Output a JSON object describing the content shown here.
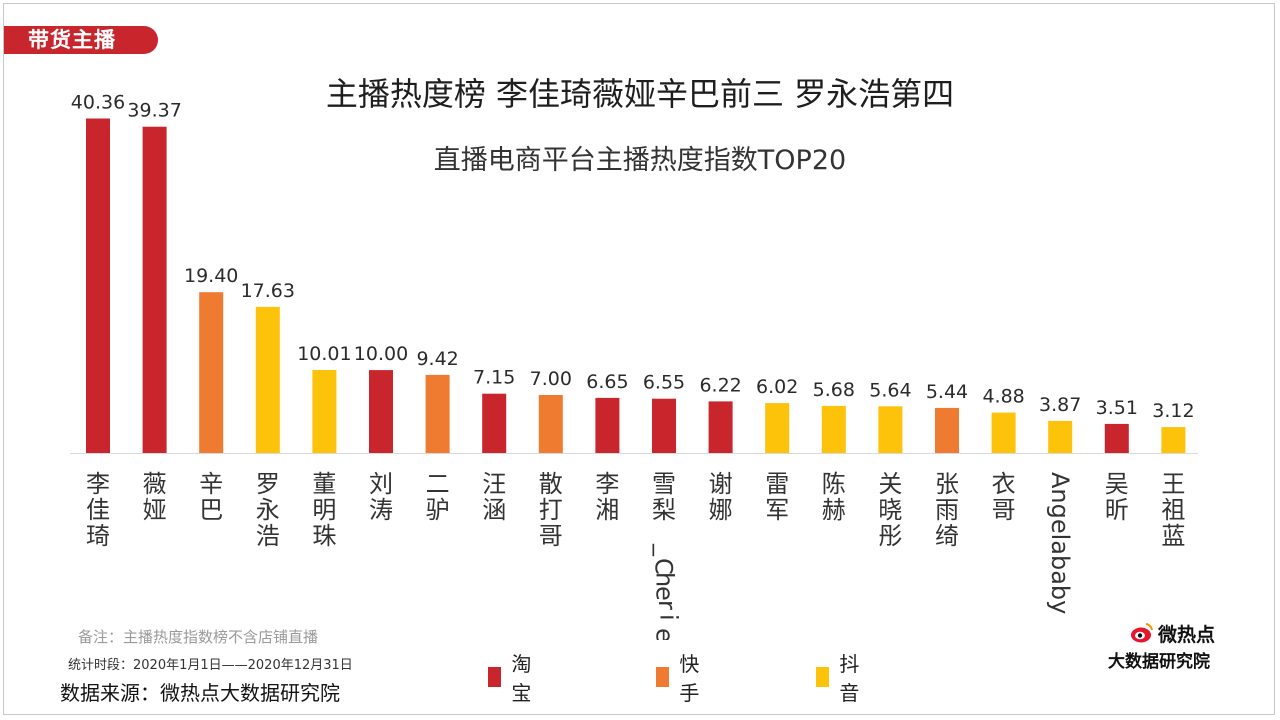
{
  "section_tag": "带货主播",
  "headline": "主播热度榜 李佳琦薇娅辛巴前三 罗永浩第四",
  "footer": {
    "note": "备注：主播热度指数榜不含店铺直播",
    "period": "统计时段：2020年1月1日——2020年12月31日",
    "source": "数据来源：微热点大数据研究院"
  },
  "logo": {
    "line1": "微热点",
    "line2": "大数据研究院",
    "icon": "weibo-eye-icon"
  },
  "colors": {
    "淘宝": "#c9252c",
    "快手": "#ee7b30",
    "抖音": "#fdc20a",
    "tag": "#c9252c"
  },
  "chart_data": {
    "type": "bar",
    "title": "直播电商平台主播热度指数TOP20",
    "xlabel": "",
    "ylabel": "",
    "ylim": [
      0,
      45
    ],
    "grid": false,
    "legend_position": "bottom",
    "legend": [
      {
        "name": "淘宝",
        "color": "#c9252c"
      },
      {
        "name": "快手",
        "color": "#ee7b30"
      },
      {
        "name": "抖音",
        "color": "#fdc20a"
      }
    ],
    "categories": [
      "李佳琦",
      "薇娅",
      "辛巴",
      "罗永浩",
      "董明珠",
      "刘涛",
      "二驴",
      "汪涵",
      "散打哥",
      "李湘",
      "雪梨_Cherie",
      "谢娜",
      "雷军",
      "陈赫",
      "关晓彤",
      "张雨绮",
      "衣哥",
      "Angelababy",
      "吴昕",
      "王祖蓝"
    ],
    "values": [
      40.36,
      39.37,
      19.4,
      17.63,
      10.01,
      10.0,
      9.42,
      7.15,
      7.0,
      6.65,
      6.55,
      6.22,
      6.02,
      5.68,
      5.64,
      5.44,
      4.88,
      3.87,
      3.51,
      3.12
    ],
    "value_labels": [
      "40.36",
      "39.37",
      "19.40",
      "17.63",
      "10.01",
      "10.00",
      "9.42",
      "7.15",
      "7.00",
      "6.65",
      "6.55",
      "6.22",
      "6.02",
      "5.68",
      "5.64",
      "5.44",
      "4.88",
      "3.87",
      "3.51",
      "3.12"
    ],
    "platforms": [
      "淘宝",
      "淘宝",
      "快手",
      "抖音",
      "抖音",
      "淘宝",
      "快手",
      "淘宝",
      "快手",
      "淘宝",
      "淘宝",
      "淘宝",
      "抖音",
      "抖音",
      "抖音",
      "快手",
      "抖音",
      "抖音",
      "淘宝",
      "抖音"
    ]
  }
}
